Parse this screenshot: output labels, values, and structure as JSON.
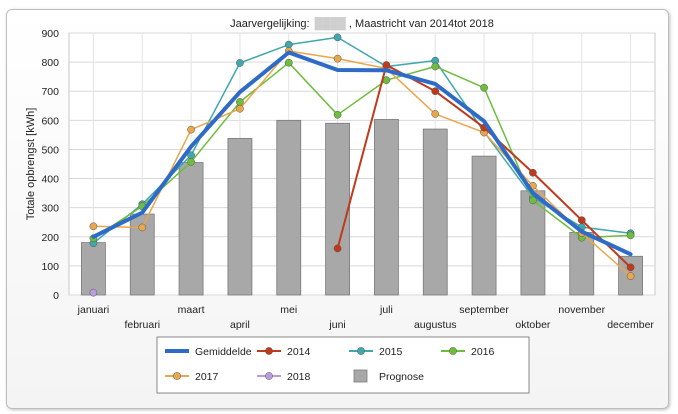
{
  "chart_data": {
    "type": "bar+line",
    "title_prefix": "Jaarvergelijking:",
    "title_suffix": ", Maastricht van 2014tot 2018",
    "ylabel": "Totale opbrengst [kWh]",
    "xlabel": "",
    "ylim": [
      0,
      900
    ],
    "yticks": [
      0,
      100,
      200,
      300,
      400,
      500,
      600,
      700,
      800,
      900
    ],
    "grid": true,
    "categories": [
      "januari",
      "februari",
      "maart",
      "april",
      "mei",
      "juni",
      "juli",
      "augustus",
      "september",
      "oktober",
      "november",
      "december"
    ],
    "bars": {
      "name": "Prognose",
      "color": "#a8a8a8",
      "values": [
        180,
        278,
        455,
        538,
        600,
        590,
        603,
        570,
        477,
        358,
        215,
        133
      ]
    },
    "series": [
      {
        "name": "Gemiddelde",
        "color": "#2e6bc7",
        "width": 4,
        "markers": false,
        "values": [
          200,
          283,
          510,
          697,
          833,
          773,
          772,
          725,
          597,
          350,
          218,
          140
        ]
      },
      {
        "name": "2014",
        "color": "#c0391b",
        "width": 2,
        "markers": true,
        "values": [
          null,
          null,
          null,
          null,
          null,
          160,
          790,
          700,
          575,
          420,
          257,
          95
        ]
      },
      {
        "name": "2015",
        "color": "#3fa7ad",
        "width": 1.5,
        "markers": true,
        "values": [
          178,
          312,
          480,
          797,
          860,
          885,
          785,
          805,
          560,
          335,
          233,
          212
        ]
      },
      {
        "name": "2016",
        "color": "#6ebd3c",
        "width": 1.5,
        "markers": true,
        "values": [
          195,
          305,
          457,
          663,
          798,
          619,
          738,
          785,
          712,
          325,
          197,
          205
        ]
      },
      {
        "name": "2017",
        "color": "#e9a64a",
        "width": 1.5,
        "markers": true,
        "values": [
          236,
          232,
          568,
          640,
          838,
          812,
          778,
          622,
          558,
          375,
          213,
          65
        ]
      },
      {
        "name": "2018",
        "color": "#b99ce0",
        "width": 1.5,
        "markers": true,
        "values": [
          8,
          null,
          null,
          null,
          null,
          null,
          null,
          null,
          null,
          null,
          null,
          null
        ]
      }
    ],
    "legend": {
      "position": "bottom-center",
      "items": [
        "Gemiddelde",
        "2014",
        "2015",
        "2016",
        "2017",
        "2018",
        "Prognose"
      ]
    }
  }
}
